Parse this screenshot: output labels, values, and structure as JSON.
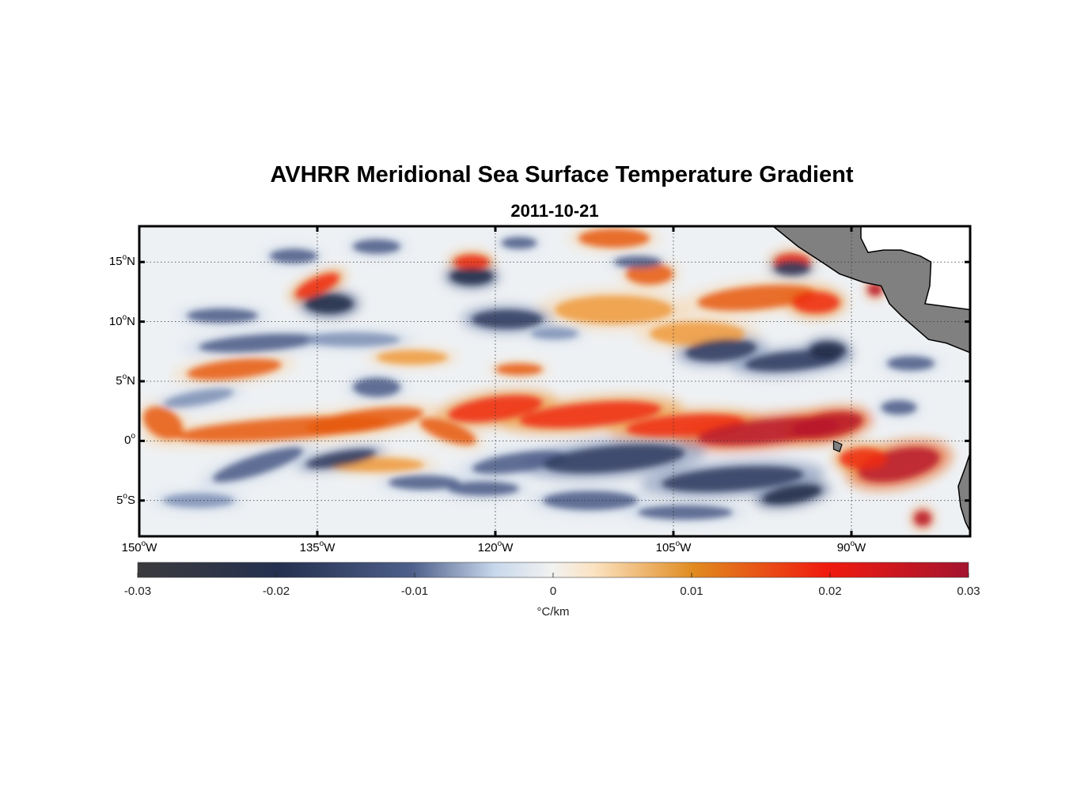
{
  "title": "AVHRR Meridional Sea Surface Temperature Gradient",
  "subtitle": "2011-10-21",
  "lat_ticks": [
    {
      "value": 15,
      "num": "15",
      "hemi": "N"
    },
    {
      "value": 10,
      "num": "10",
      "hemi": "N"
    },
    {
      "value": 5,
      "num": "5",
      "hemi": "N"
    },
    {
      "value": 0,
      "num": "0",
      "hemi": ""
    },
    {
      "value": -5,
      "num": "5",
      "hemi": "S"
    }
  ],
  "lon_ticks": [
    {
      "value": -150,
      "num": "150",
      "hemi": "W"
    },
    {
      "value": -135,
      "num": "135",
      "hemi": "W"
    },
    {
      "value": -120,
      "num": "120",
      "hemi": "W"
    },
    {
      "value": -105,
      "num": "105",
      "hemi": "W"
    },
    {
      "value": -90,
      "num": "90",
      "hemi": "W"
    }
  ],
  "extent": {
    "lon": [
      -150,
      -80
    ],
    "lat": [
      -8,
      18
    ]
  },
  "colorbar": {
    "ticks": [
      "-0.03",
      "-0.02",
      "-0.01",
      "0",
      "0.01",
      "0.02",
      "0.03"
    ],
    "range": [
      -0.03,
      0.03
    ],
    "unit": "°C/km",
    "stops": [
      {
        "v": 0.0,
        "c": "#3b3b3d"
      },
      {
        "v": 0.17,
        "c": "#24304f"
      },
      {
        "v": 0.33,
        "c": "#4d5f8a"
      },
      {
        "v": 0.43,
        "c": "#c8d8ec"
      },
      {
        "v": 0.5,
        "c": "#f2f2f0"
      },
      {
        "v": 0.55,
        "c": "#fbe2c0"
      },
      {
        "v": 0.67,
        "c": "#e08a1e"
      },
      {
        "v": 0.83,
        "c": "#f01a0f"
      },
      {
        "v": 1.0,
        "c": "#a4142f"
      }
    ]
  },
  "colors": {
    "land": "#808080",
    "coast": "#000000",
    "frame": "#000000"
  }
}
